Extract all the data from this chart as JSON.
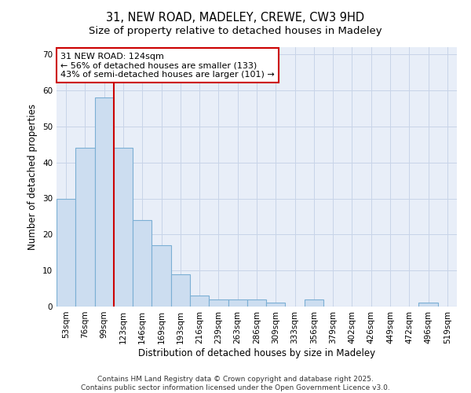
{
  "title_line1": "31, NEW ROAD, MADELEY, CREWE, CW3 9HD",
  "title_line2": "Size of property relative to detached houses in Madeley",
  "xlabel": "Distribution of detached houses by size in Madeley",
  "ylabel": "Number of detached properties",
  "categories": [
    "53sqm",
    "76sqm",
    "99sqm",
    "123sqm",
    "146sqm",
    "169sqm",
    "193sqm",
    "216sqm",
    "239sqm",
    "263sqm",
    "286sqm",
    "309sqm",
    "333sqm",
    "356sqm",
    "379sqm",
    "402sqm",
    "426sqm",
    "449sqm",
    "472sqm",
    "496sqm",
    "519sqm"
  ],
  "values": [
    30,
    44,
    58,
    44,
    24,
    17,
    9,
    3,
    2,
    2,
    2,
    1,
    0,
    2,
    0,
    0,
    0,
    0,
    0,
    1,
    0
  ],
  "bar_color": "#ccddf0",
  "bar_edge_color": "#7bafd4",
  "highlight_line_index": 3,
  "highlight_color": "#cc0000",
  "annotation_text": "31 NEW ROAD: 124sqm\n← 56% of detached houses are smaller (133)\n43% of semi-detached houses are larger (101) →",
  "annotation_box_color": "#ffffff",
  "annotation_box_edge": "#cc0000",
  "ylim": [
    0,
    72
  ],
  "yticks": [
    0,
    10,
    20,
    30,
    40,
    50,
    60,
    70
  ],
  "grid_color": "#c8d4e8",
  "background_color": "#e8eef8",
  "footer_text": "Contains HM Land Registry data © Crown copyright and database right 2025.\nContains public sector information licensed under the Open Government Licence v3.0.",
  "title_fontsize": 10.5,
  "subtitle_fontsize": 9.5,
  "axis_label_fontsize": 8.5,
  "tick_fontsize": 7.5,
  "annotation_fontsize": 8.0
}
